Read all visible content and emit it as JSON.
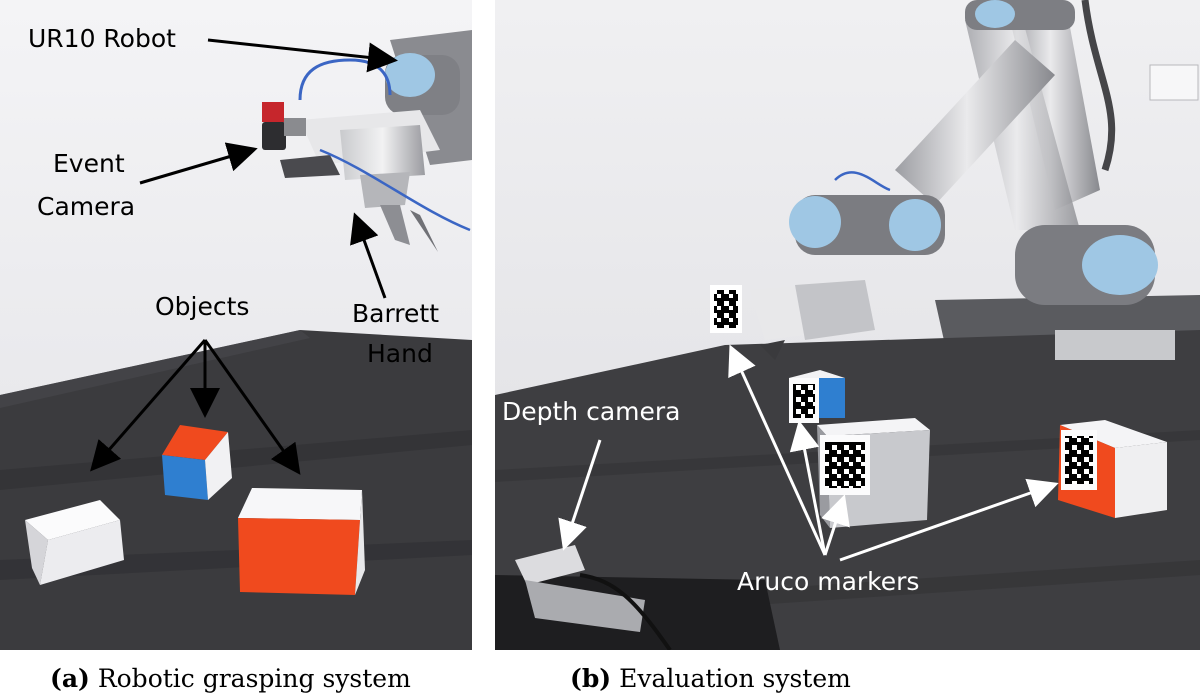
{
  "panel_a": {
    "labels": {
      "robot": "UR10 Robot",
      "event_camera_line1": "Event",
      "event_camera_line2": "Camera",
      "objects": "Objects",
      "hand_line1": "Barrett",
      "hand_line2": "Hand"
    },
    "caption_tag": "(a)",
    "caption_text": "Robotic grasping system"
  },
  "panel_b": {
    "labels": {
      "depth_camera": "Depth camera",
      "aruco": "Aruco markers"
    },
    "caption_tag": "(b)",
    "caption_text": "Evaluation system"
  },
  "colors": {
    "table": "#3a3a3c",
    "wall": "#ebebed",
    "robot_blue": "#9fc7e4",
    "box_red": "#f04a1e",
    "box_blue": "#2f7fd0",
    "box_white": "#f4f4f6"
  }
}
